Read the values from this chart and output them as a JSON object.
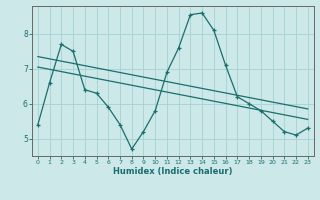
{
  "xlabel": "Humidex (Indice chaleur)",
  "bg_color": "#cce8e8",
  "line_color": "#1a6e6e",
  "grid_color": "#aad4d4",
  "xlim": [
    -0.5,
    23.5
  ],
  "ylim": [
    4.5,
    8.8
  ],
  "x_ticks": [
    0,
    1,
    2,
    3,
    4,
    5,
    6,
    7,
    8,
    9,
    10,
    11,
    12,
    13,
    14,
    15,
    16,
    17,
    18,
    19,
    20,
    21,
    22,
    23
  ],
  "y_ticks": [
    5,
    6,
    7,
    8
  ],
  "main_line_x": [
    0,
    1,
    2,
    3,
    4,
    5,
    6,
    7,
    8,
    9,
    10,
    11,
    12,
    13,
    14,
    15,
    16,
    17,
    18,
    19,
    20,
    21,
    22,
    23
  ],
  "main_line_y": [
    5.4,
    6.6,
    7.7,
    7.5,
    6.4,
    6.3,
    5.9,
    5.4,
    4.7,
    5.2,
    5.8,
    6.9,
    7.6,
    8.55,
    8.6,
    8.1,
    7.1,
    6.2,
    6.0,
    5.8,
    5.5,
    5.2,
    5.1,
    5.3
  ],
  "trend1_x": [
    0,
    23
  ],
  "trend1_y": [
    7.35,
    5.85
  ],
  "trend2_x": [
    0,
    23
  ],
  "trend2_y": [
    7.05,
    5.55
  ]
}
